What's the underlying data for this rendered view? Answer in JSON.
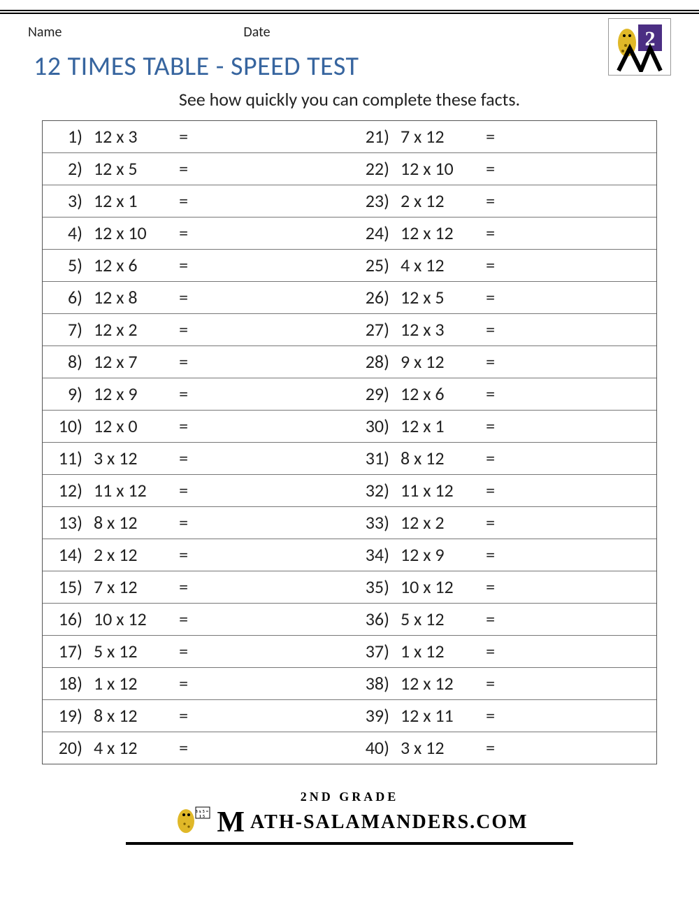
{
  "header": {
    "name_label": "Name",
    "date_label": "Date",
    "logo_number": "2"
  },
  "title": "12 TIMES TABLE - SPEED TEST",
  "subtitle": "See how quickly you can complete these facts.",
  "colors": {
    "title": "#37659f",
    "rule": "#000000",
    "border": "#555555",
    "row_border": "#777777",
    "text": "#222222",
    "logo_bg": "#4b2e83",
    "logo_gold": "#e0b828",
    "background": "#ffffff"
  },
  "typography": {
    "title_fontsize": 38,
    "subtitle_fontsize": 26,
    "cell_fontsize": 26,
    "header_label_fontsize": 20,
    "footer_grade_fontsize": 18,
    "footer_brand_fontsize": 28
  },
  "table": {
    "type": "worksheet-table",
    "columns": [
      "number",
      "expression",
      "equals",
      "answer",
      "number",
      "expression",
      "equals",
      "answer"
    ],
    "equals": "=",
    "left": [
      {
        "n": "1)",
        "expr": "12 x 3"
      },
      {
        "n": "2)",
        "expr": "12 x 5"
      },
      {
        "n": "3)",
        "expr": "12 x 1"
      },
      {
        "n": "4)",
        "expr": "12 x 10"
      },
      {
        "n": "5)",
        "expr": "12 x 6"
      },
      {
        "n": "6)",
        "expr": "12 x 8"
      },
      {
        "n": "7)",
        "expr": "12 x 2"
      },
      {
        "n": "8)",
        "expr": "12 x 7"
      },
      {
        "n": "9)",
        "expr": "12 x 9"
      },
      {
        "n": "10)",
        "expr": "12 x 0"
      },
      {
        "n": "11)",
        "expr": "3 x 12"
      },
      {
        "n": "12)",
        "expr": "11 x 12"
      },
      {
        "n": "13)",
        "expr": "8 x 12"
      },
      {
        "n": "14)",
        "expr": "2 x 12"
      },
      {
        "n": "15)",
        "expr": "7 x 12"
      },
      {
        "n": "16)",
        "expr": "10 x 12"
      },
      {
        "n": "17)",
        "expr": "5 x 12"
      },
      {
        "n": "18)",
        "expr": "1 x 12"
      },
      {
        "n": "19)",
        "expr": "8 x 12"
      },
      {
        "n": "20)",
        "expr": "4 x 12"
      }
    ],
    "right": [
      {
        "n": "21)",
        "expr": "7 x 12"
      },
      {
        "n": "22)",
        "expr": "12 x 10"
      },
      {
        "n": "23)",
        "expr": "2 x 12"
      },
      {
        "n": "24)",
        "expr": "12 x 12"
      },
      {
        "n": "25)",
        "expr": "4 x 12"
      },
      {
        "n": "26)",
        "expr": "12 x 5"
      },
      {
        "n": "27)",
        "expr": "12 x 3"
      },
      {
        "n": "28)",
        "expr": "9 x 12"
      },
      {
        "n": "29)",
        "expr": "12 x 6"
      },
      {
        "n": "30)",
        "expr": "12 x 1"
      },
      {
        "n": "31)",
        "expr": "8 x 12"
      },
      {
        "n": "32)",
        "expr": "11 x 12"
      },
      {
        "n": "33)",
        "expr": "12 x 2"
      },
      {
        "n": "34)",
        "expr": "12 x 9"
      },
      {
        "n": "35)",
        "expr": "10 x 12"
      },
      {
        "n": "36)",
        "expr": "5 x 12"
      },
      {
        "n": "37)",
        "expr": "1 x 12"
      },
      {
        "n": "38)",
        "expr": "12 x 12"
      },
      {
        "n": "39)",
        "expr": "12 x 11"
      },
      {
        "n": "40)",
        "expr": "3 x 12"
      }
    ]
  },
  "footer": {
    "grade_line": "2ND GRADE",
    "brand_big_m": "M",
    "brand_rest": "ATH-SALAMANDERS.COM"
  }
}
